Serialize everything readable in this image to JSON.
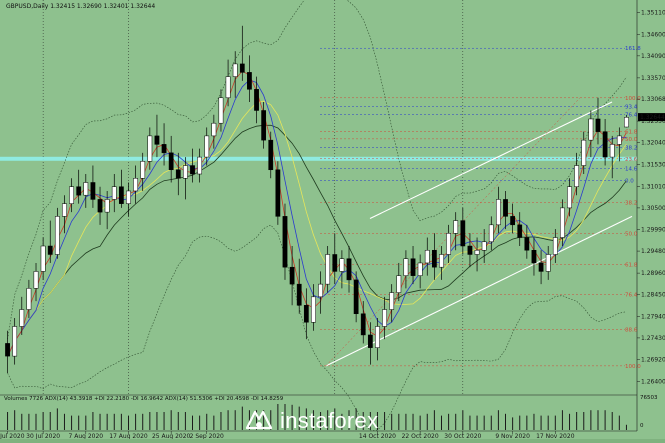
{
  "header": {
    "text": "GBPUSD,Daily  1.32415 1.32690 1.32401 1.32644"
  },
  "volumes_header": {
    "text": "Volumes 7726  ADX(14) 43.3918 +DI 22.2180 -DI 16.9642  ADX(14) 51.5306 +DI 20.4598 -DI 14.8259"
  },
  "current_price": {
    "text": "1.32644",
    "color": "#000000"
  },
  "volume_scale": {
    "top": "76503",
    "bottom": "0"
  },
  "logo": {
    "text": "instaforex"
  },
  "colors": {
    "background": "#8ec18e",
    "candle": "#000000",
    "bollinger": "#2f4f2f",
    "ma_red": "#c83c28",
    "ma_blue": "#2a3ad0",
    "ma_yellow": "#e6e65a",
    "channel": "#ffffff",
    "fib": "#d04a3a",
    "fib_blue": "#2a3ad0",
    "cyan_band": "#8ff2ee"
  },
  "chart_data": {
    "type": "candlestick",
    "symbol": "GBPUSD",
    "timeframe": "Daily",
    "ohlc_last": {
      "open": 1.32415,
      "high": 1.3269,
      "low": 1.32401,
      "close": 1.32644
    },
    "y_ticks": [
      "1.35110",
      "1.34600",
      "1.34090",
      "1.33570",
      "1.33068",
      "1.32550",
      "1.32040",
      "1.31530",
      "1.31010",
      "1.30500",
      "1.29990",
      "1.29480",
      "1.28960",
      "1.28450",
      "1.27940",
      "1.27430",
      "1.26920",
      "1.26400"
    ],
    "ylim": [
      1.262,
      1.3522
    ],
    "x_ticks": [
      "22 Jul 2020",
      "30 Jul 2020",
      "7 Aug 2020",
      "17 Aug 2020",
      "25 Aug 2020",
      "2 Sep 2020",
      "14 Oct 2020",
      "22 Oct 2020",
      "30 Oct 2020",
      "9 Nov 2020",
      "17 Nov 2020"
    ],
    "fib_levels": [
      {
        "label": "161.8",
        "price": 1.3427,
        "color": "blue"
      },
      {
        "label": "100.0",
        "price": 1.331,
        "color": "red"
      },
      {
        "label": "93.4",
        "price": 1.329,
        "color": "blue"
      },
      {
        "label": "76.4",
        "price": 1.327,
        "color": "blue"
      },
      {
        "label": "61.8",
        "price": 1.323,
        "color": "red"
      },
      {
        "label": "50.0",
        "price": 1.3213,
        "color": "red"
      },
      {
        "label": "38.2",
        "price": 1.3193,
        "color": "blue"
      },
      {
        "label": "23.6",
        "price": 1.3166,
        "color": "red"
      },
      {
        "label": "14.6",
        "price": 1.3143,
        "color": "blue"
      },
      {
        "label": "0.0",
        "price": 1.3115,
        "color": "blue"
      },
      {
        "label": "38.2",
        "price": 1.3063,
        "color": "red"
      },
      {
        "label": "50.0",
        "price": 1.299,
        "color": "red"
      },
      {
        "label": "61.8",
        "price": 1.2916,
        "color": "red"
      },
      {
        "label": "76.4",
        "price": 1.2845,
        "color": "red"
      },
      {
        "label": "88.6",
        "price": 1.2763,
        "color": "red"
      },
      {
        "label": "100.0",
        "price": 1.2677,
        "color": "red"
      }
    ],
    "candles": [
      [
        1.273,
        1.276,
        1.266,
        1.27
      ],
      [
        1.27,
        1.279,
        1.268,
        1.277
      ],
      [
        1.277,
        1.284,
        1.275,
        1.281
      ],
      [
        1.281,
        1.288,
        1.279,
        1.286
      ],
      [
        1.286,
        1.292,
        1.283,
        1.29
      ],
      [
        1.29,
        1.298,
        1.288,
        1.296
      ],
      [
        1.296,
        1.302,
        1.292,
        1.294
      ],
      [
        1.294,
        1.305,
        1.293,
        1.303
      ],
      [
        1.303,
        1.308,
        1.299,
        1.306
      ],
      [
        1.306,
        1.312,
        1.304,
        1.31
      ],
      [
        1.31,
        1.314,
        1.306,
        1.308
      ],
      [
        1.308,
        1.313,
        1.305,
        1.311
      ],
      [
        1.311,
        1.315,
        1.305,
        1.307
      ],
      [
        1.307,
        1.31,
        1.301,
        1.304
      ],
      [
        1.304,
        1.309,
        1.3,
        1.307
      ],
      [
        1.307,
        1.313,
        1.304,
        1.31
      ],
      [
        1.31,
        1.314,
        1.305,
        1.306
      ],
      [
        1.306,
        1.311,
        1.303,
        1.309
      ],
      [
        1.309,
        1.315,
        1.306,
        1.312
      ],
      [
        1.312,
        1.318,
        1.309,
        1.316
      ],
      [
        1.316,
        1.324,
        1.314,
        1.322
      ],
      [
        1.322,
        1.327,
        1.317,
        1.32
      ],
      [
        1.32,
        1.325,
        1.315,
        1.318
      ],
      [
        1.318,
        1.322,
        1.311,
        1.314
      ],
      [
        1.314,
        1.318,
        1.308,
        1.312
      ],
      [
        1.312,
        1.317,
        1.307,
        1.315
      ],
      [
        1.315,
        1.319,
        1.311,
        1.313
      ],
      [
        1.313,
        1.319,
        1.311,
        1.317
      ],
      [
        1.317,
        1.324,
        1.315,
        1.322
      ],
      [
        1.322,
        1.327,
        1.319,
        1.325
      ],
      [
        1.325,
        1.333,
        1.323,
        1.331
      ],
      [
        1.331,
        1.34,
        1.329,
        1.336
      ],
      [
        1.336,
        1.342,
        1.331,
        1.339
      ],
      [
        1.339,
        1.348,
        1.335,
        1.337
      ],
      [
        1.337,
        1.341,
        1.33,
        1.333
      ],
      [
        1.333,
        1.336,
        1.325,
        1.328
      ],
      [
        1.328,
        1.33,
        1.319,
        1.321
      ],
      [
        1.321,
        1.323,
        1.312,
        1.314
      ],
      [
        1.314,
        1.316,
        1.301,
        1.303
      ],
      [
        1.303,
        1.306,
        1.288,
        1.291
      ],
      [
        1.291,
        1.296,
        1.282,
        1.287
      ],
      [
        1.287,
        1.293,
        1.28,
        1.282
      ],
      [
        1.282,
        1.286,
        1.274,
        1.278
      ],
      [
        1.278,
        1.287,
        1.276,
        1.284
      ],
      [
        1.284,
        1.29,
        1.28,
        1.287
      ],
      [
        1.287,
        1.296,
        1.285,
        1.294
      ],
      [
        1.294,
        1.299,
        1.287,
        1.29
      ],
      [
        1.29,
        1.295,
        1.286,
        1.293
      ],
      [
        1.293,
        1.296,
        1.285,
        1.288
      ],
      [
        1.288,
        1.29,
        1.278,
        1.28
      ],
      [
        1.28,
        1.283,
        1.273,
        1.275
      ],
      [
        1.275,
        1.278,
        1.268,
        1.272
      ],
      [
        1.272,
        1.279,
        1.269,
        1.277
      ],
      [
        1.277,
        1.284,
        1.274,
        1.281
      ],
      [
        1.281,
        1.287,
        1.278,
        1.285
      ],
      [
        1.285,
        1.292,
        1.283,
        1.289
      ],
      [
        1.289,
        1.295,
        1.286,
        1.293
      ],
      [
        1.293,
        1.296,
        1.287,
        1.289
      ],
      [
        1.289,
        1.294,
        1.286,
        1.292
      ],
      [
        1.292,
        1.298,
        1.289,
        1.295
      ],
      [
        1.295,
        1.299,
        1.288,
        1.291
      ],
      [
        1.291,
        1.296,
        1.288,
        1.294
      ],
      [
        1.294,
        1.301,
        1.292,
        1.299
      ],
      [
        1.299,
        1.304,
        1.295,
        1.302
      ],
      [
        1.302,
        1.305,
        1.294,
        1.296
      ],
      [
        1.296,
        1.299,
        1.291,
        1.294
      ],
      [
        1.294,
        1.298,
        1.29,
        1.295
      ],
      [
        1.295,
        1.3,
        1.292,
        1.297
      ],
      [
        1.297,
        1.303,
        1.295,
        1.301
      ],
      [
        1.301,
        1.31,
        1.299,
        1.307
      ],
      [
        1.307,
        1.309,
        1.3,
        1.303
      ],
      [
        1.303,
        1.306,
        1.299,
        1.301
      ],
      [
        1.301,
        1.304,
        1.296,
        1.298
      ],
      [
        1.298,
        1.301,
        1.293,
        1.295
      ],
      [
        1.295,
        1.298,
        1.289,
        1.292
      ],
      [
        1.292,
        1.295,
        1.287,
        1.29
      ],
      [
        1.29,
        1.296,
        1.288,
        1.294
      ],
      [
        1.294,
        1.3,
        1.292,
        1.298
      ],
      [
        1.298,
        1.307,
        1.296,
        1.305
      ],
      [
        1.305,
        1.312,
        1.303,
        1.31
      ],
      [
        1.31,
        1.318,
        1.308,
        1.315
      ],
      [
        1.315,
        1.323,
        1.313,
        1.321
      ],
      [
        1.321,
        1.328,
        1.317,
        1.326
      ],
      [
        1.326,
        1.331,
        1.32,
        1.323
      ],
      [
        1.323,
        1.326,
        1.315,
        1.317
      ],
      [
        1.317,
        1.322,
        1.312,
        1.32
      ],
      [
        1.32,
        1.324,
        1.316,
        1.322
      ],
      [
        1.3241,
        1.3269,
        1.324,
        1.3264
      ]
    ]
  }
}
